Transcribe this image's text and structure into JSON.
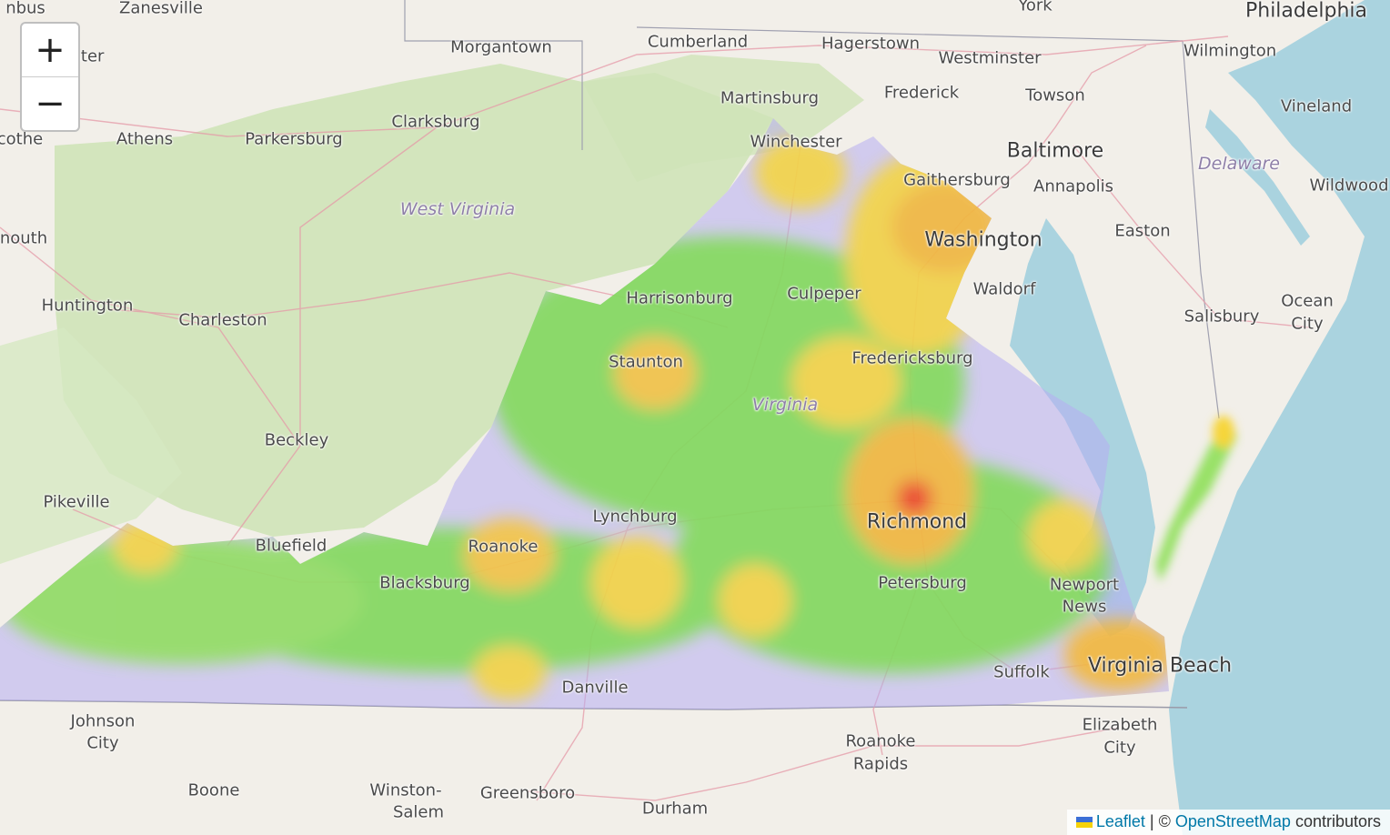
{
  "map": {
    "labels": [
      {
        "text": "nbus",
        "cls": "city"
      },
      {
        "text": "Zanesville",
        "cls": "city"
      },
      {
        "text": "York",
        "cls": "city"
      },
      {
        "text": "Philadelphia",
        "cls": "big"
      },
      {
        "text": "Morgantown",
        "cls": "city"
      },
      {
        "text": "Cumberland",
        "cls": "city"
      },
      {
        "text": "Hagerstown",
        "cls": "city"
      },
      {
        "text": "Westminster",
        "cls": "city"
      },
      {
        "text": "Wilmington",
        "cls": "city"
      },
      {
        "text": "ster",
        "cls": "city"
      },
      {
        "text": "Martinsburg",
        "cls": "city"
      },
      {
        "text": "Frederick",
        "cls": "city"
      },
      {
        "text": "Towson",
        "cls": "city"
      },
      {
        "text": "Vineland",
        "cls": "city"
      },
      {
        "text": "Clarksburg",
        "cls": "city"
      },
      {
        "text": "cothe",
        "cls": "city"
      },
      {
        "text": "Athens",
        "cls": "city"
      },
      {
        "text": "Parkersburg",
        "cls": "city"
      },
      {
        "text": "Winchester",
        "cls": "city"
      },
      {
        "text": "Baltimore",
        "cls": "big"
      },
      {
        "text": "Delaware",
        "cls": "state"
      },
      {
        "text": "Gaithersburg",
        "cls": "city"
      },
      {
        "text": "Annapolis",
        "cls": "city"
      },
      {
        "text": "Wildwood",
        "cls": "city"
      },
      {
        "text": "West Virginia",
        "cls": "state"
      },
      {
        "text": "Washington",
        "cls": "big"
      },
      {
        "text": "Easton",
        "cls": "city"
      },
      {
        "text": "nouth",
        "cls": "city"
      },
      {
        "text": "Waldorf",
        "cls": "city"
      },
      {
        "text": "Huntington",
        "cls": "city"
      },
      {
        "text": "Harrisonburg",
        "cls": "city"
      },
      {
        "text": "Culpeper",
        "cls": "city"
      },
      {
        "text": "Ocean",
        "cls": "city"
      },
      {
        "text": "City",
        "cls": "city"
      },
      {
        "text": "Charleston",
        "cls": "city"
      },
      {
        "text": "Salisbury",
        "cls": "city"
      },
      {
        "text": "Fredericksburg",
        "cls": "city"
      },
      {
        "text": "Staunton",
        "cls": "city"
      },
      {
        "text": "Virginia",
        "cls": "state"
      },
      {
        "text": "Beckley",
        "cls": "city"
      },
      {
        "text": "Pikeville",
        "cls": "city"
      },
      {
        "text": "Lynchburg",
        "cls": "city"
      },
      {
        "text": "Richmond",
        "cls": "big"
      },
      {
        "text": "Bluefield",
        "cls": "city"
      },
      {
        "text": "Roanoke",
        "cls": "city"
      },
      {
        "text": "Blacksburg",
        "cls": "city"
      },
      {
        "text": "Petersburg",
        "cls": "city"
      },
      {
        "text": "Newport",
        "cls": "city"
      },
      {
        "text": "News",
        "cls": "city"
      },
      {
        "text": "Virginia Beach",
        "cls": "big"
      },
      {
        "text": "Suffolk",
        "cls": "city"
      },
      {
        "text": "Danville",
        "cls": "city"
      },
      {
        "text": "Johnson",
        "cls": "city"
      },
      {
        "text": "City",
        "cls": "city"
      },
      {
        "text": "Elizabeth",
        "cls": "city"
      },
      {
        "text": "City",
        "cls": "city"
      },
      {
        "text": "Roanoke",
        "cls": "city"
      },
      {
        "text": "Rapids",
        "cls": "city"
      },
      {
        "text": "Boone",
        "cls": "city"
      },
      {
        "text": "Winston-",
        "cls": "city"
      },
      {
        "text": "Salem",
        "cls": "city"
      },
      {
        "text": "Greensboro",
        "cls": "city"
      },
      {
        "text": "Durham",
        "cls": "city"
      }
    ]
  },
  "controls": {
    "zoom_in": "+",
    "zoom_out": "−"
  },
  "attribution": {
    "leaflet": "Leaflet",
    "separator": "| ©",
    "osm": "OpenStreetMap",
    "suffix": "contributors"
  },
  "colors": {
    "water": "#aad3df",
    "land": "#f2efe9",
    "forest": "#cfe3b8",
    "heat_low": "#9c8cf0",
    "heat_mid": "#6fe05a",
    "heat_high": "#f6e84a",
    "heat_peak": "#f23a1a"
  }
}
